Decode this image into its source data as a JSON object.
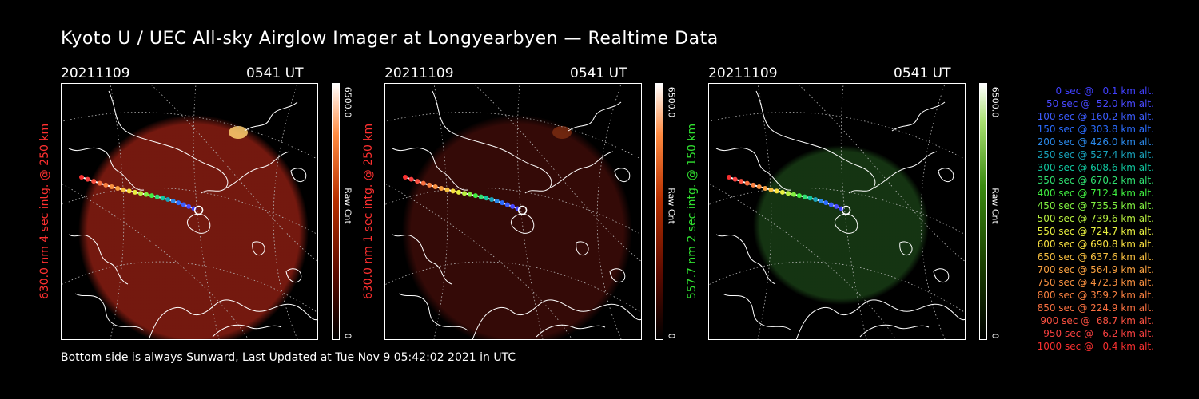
{
  "title": "Kyoto U / UEC All-sky Airglow Imager at Longyearbyen — Realtime Data",
  "footer": "Bottom side is always Sunward, Last Updated at Tue Nov  9 05:42:02 2021 in UTC",
  "panels": [
    {
      "date": "20211109",
      "time": "0541 UT",
      "label": "630.0 nm 4 sec intg. @ 250 km",
      "cbar_max": "6500.0",
      "cbar_unit": "Raw Cnt",
      "cbar_min": "0",
      "label_color": "#ff3030",
      "glow_color": "#7a1a10",
      "glow_intensity": 0.95
    },
    {
      "date": "20211109",
      "time": "0541 UT",
      "label": "630.0 nm 1 sec intg. @ 250 km",
      "cbar_max": "6500.0",
      "cbar_unit": "Raw Cnt",
      "cbar_min": "0",
      "label_color": "#ff3030",
      "glow_color": "#3a0b08",
      "glow_intensity": 0.9
    },
    {
      "date": "20211109",
      "time": "0541 UT",
      "label": "557.7 nm 2 sec intg. @ 150 km",
      "cbar_max": "6500.0",
      "cbar_unit": "Raw Cnt",
      "cbar_min": "0",
      "label_color": "#30e030",
      "glow_color": "#173a14",
      "glow_intensity": 0.9
    }
  ],
  "legend": [
    {
      "text": "0 sec @   0.1 km alt.",
      "color": "#4040ff"
    },
    {
      "text": "50 sec @  52.0 km alt.",
      "color": "#4848ff"
    },
    {
      "text": "100 sec @ 160.2 km alt.",
      "color": "#3c5cff"
    },
    {
      "text": "150 sec @ 303.8 km alt.",
      "color": "#2a6cff"
    },
    {
      "text": "200 sec @ 426.0 km alt.",
      "color": "#2a88e8"
    },
    {
      "text": "250 sec @ 527.4 km alt.",
      "color": "#18a0b8"
    },
    {
      "text": "300 sec @ 608.6 km alt.",
      "color": "#10c8a0"
    },
    {
      "text": "350 sec @ 670.2 km alt.",
      "color": "#30e070"
    },
    {
      "text": "400 sec @ 712.4 km alt.",
      "color": "#40f040"
    },
    {
      "text": "450 sec @ 735.5 km alt.",
      "color": "#80f040"
    },
    {
      "text": "500 sec @ 739.6 km alt.",
      "color": "#b8f040"
    },
    {
      "text": "550 sec @ 724.7 km alt.",
      "color": "#e8f040"
    },
    {
      "text": "600 sec @ 690.8 km alt.",
      "color": "#f8e040"
    },
    {
      "text": "650 sec @ 637.6 km alt.",
      "color": "#f8c040"
    },
    {
      "text": "700 sec @ 564.9 km alt.",
      "color": "#f8a040"
    },
    {
      "text": "750 sec @ 472.3 km alt.",
      "color": "#f89040"
    },
    {
      "text": "800 sec @ 359.2 km alt.",
      "color": "#f88040"
    },
    {
      "text": "850 sec @ 224.9 km alt.",
      "color": "#f87040"
    },
    {
      "text": "900 sec @  68.7 km alt.",
      "color": "#f85040"
    },
    {
      "text": "950 sec @   6.2 km alt.",
      "color": "#f84040"
    },
    {
      "text": "1000 sec @   0.4 km alt.",
      "color": "#f83030"
    }
  ]
}
